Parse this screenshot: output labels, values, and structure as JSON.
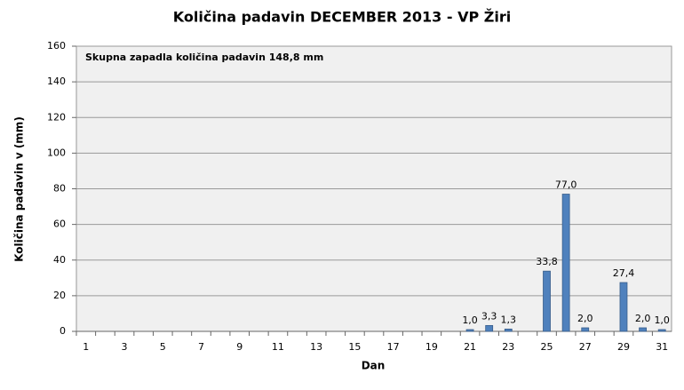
{
  "chart_data": {
    "type": "bar",
    "title": "Količina padavin DECEMBER 2013 - VP Žiri",
    "annotation": "Skupna zapadla količina padavin 148,8 mm",
    "x_label": "Dan",
    "y_label": "Količina padavin v (mm)",
    "categories": [
      "1",
      null,
      "3",
      null,
      "5",
      null,
      "7",
      null,
      "9",
      null,
      "11",
      null,
      "13",
      null,
      "15",
      null,
      "17",
      null,
      "19",
      null,
      "21",
      null,
      "23",
      null,
      "25",
      null,
      "27",
      null,
      "29",
      null,
      "31"
    ],
    "values": [
      null,
      null,
      null,
      null,
      null,
      null,
      null,
      null,
      null,
      null,
      null,
      null,
      null,
      null,
      null,
      null,
      null,
      null,
      null,
      null,
      1.0,
      3.3,
      1.3,
      null,
      33.8,
      77.0,
      2.0,
      null,
      27.4,
      2.0,
      1.0
    ],
    "value_labels": [
      null,
      null,
      null,
      null,
      null,
      null,
      null,
      null,
      null,
      null,
      null,
      null,
      null,
      null,
      null,
      null,
      null,
      null,
      null,
      null,
      "1,0",
      "3,3",
      "1,3",
      null,
      "33,8",
      "77,0",
      "2,0",
      null,
      "27,4",
      "2,0",
      "1,0"
    ],
    "color": "#4f81bd",
    "ylim": [
      0,
      160
    ],
    "yticks": [
      0,
      20,
      40,
      60,
      80,
      100,
      120,
      140,
      160
    ],
    "grid": true
  }
}
